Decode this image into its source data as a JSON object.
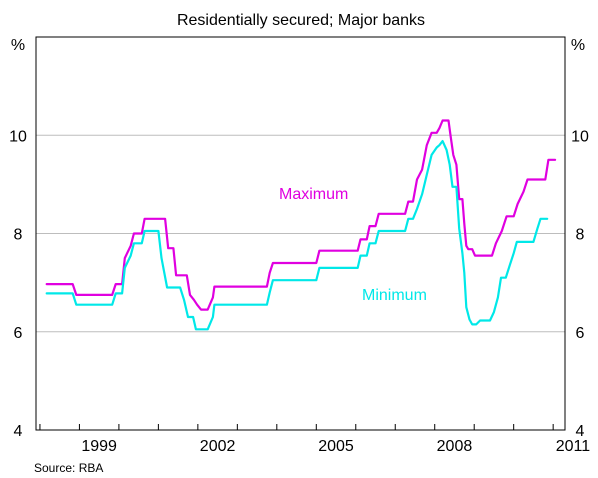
{
  "chart_data": {
    "type": "line",
    "title": "Residentially secured; Major banks",
    "left_unit": "%",
    "right_unit": "%",
    "ylim": [
      4,
      12
    ],
    "y_ticks": [
      4,
      6,
      8,
      10
    ],
    "y_tick_labels": [
      "4",
      "6",
      "8",
      "10"
    ],
    "x_tick_labels": [
      "1999",
      "2002",
      "2005",
      "2008",
      "2011"
    ],
    "x_tick_years": [
      1999,
      2002,
      2005,
      2008,
      2011
    ],
    "xlim": [
      1997.9,
      2011.3
    ],
    "grid": true,
    "source": "Source: RBA",
    "series": [
      {
        "name": "Maximum",
        "color": "#e000e0",
        "points": [
          [
            1998.17,
            6.97
          ],
          [
            1998.83,
            6.97
          ],
          [
            1998.92,
            6.75
          ],
          [
            1999.83,
            6.75
          ],
          [
            1999.92,
            6.97
          ],
          [
            2000.08,
            6.97
          ],
          [
            2000.15,
            7.5
          ],
          [
            2000.3,
            7.75
          ],
          [
            2000.38,
            8.0
          ],
          [
            2000.58,
            8.0
          ],
          [
            2000.65,
            8.3
          ],
          [
            2001.17,
            8.3
          ],
          [
            2001.25,
            7.7
          ],
          [
            2001.38,
            7.7
          ],
          [
            2001.45,
            7.15
          ],
          [
            2001.72,
            7.15
          ],
          [
            2001.8,
            6.75
          ],
          [
            2001.9,
            6.65
          ],
          [
            2001.98,
            6.55
          ],
          [
            2002.08,
            6.45
          ],
          [
            2002.25,
            6.45
          ],
          [
            2002.38,
            6.7
          ],
          [
            2002.42,
            6.92
          ],
          [
            2003.75,
            6.92
          ],
          [
            2003.82,
            7.2
          ],
          [
            2003.9,
            7.4
          ],
          [
            2005.0,
            7.4
          ],
          [
            2005.08,
            7.65
          ],
          [
            2006.05,
            7.65
          ],
          [
            2006.12,
            7.88
          ],
          [
            2006.28,
            7.88
          ],
          [
            2006.35,
            8.15
          ],
          [
            2006.5,
            8.15
          ],
          [
            2006.58,
            8.4
          ],
          [
            2007.25,
            8.4
          ],
          [
            2007.33,
            8.65
          ],
          [
            2007.45,
            8.65
          ],
          [
            2007.55,
            9.1
          ],
          [
            2007.68,
            9.3
          ],
          [
            2007.8,
            9.8
          ],
          [
            2007.92,
            10.05
          ],
          [
            2008.05,
            10.05
          ],
          [
            2008.12,
            10.15
          ],
          [
            2008.2,
            10.3
          ],
          [
            2008.35,
            10.3
          ],
          [
            2008.4,
            10.0
          ],
          [
            2008.47,
            9.6
          ],
          [
            2008.55,
            9.4
          ],
          [
            2008.62,
            8.7
          ],
          [
            2008.7,
            8.7
          ],
          [
            2008.75,
            8.2
          ],
          [
            2008.8,
            7.75
          ],
          [
            2008.85,
            7.68
          ],
          [
            2008.95,
            7.68
          ],
          [
            2009.02,
            7.55
          ],
          [
            2009.45,
            7.55
          ],
          [
            2009.55,
            7.8
          ],
          [
            2009.7,
            8.05
          ],
          [
            2009.82,
            8.35
          ],
          [
            2010.0,
            8.35
          ],
          [
            2010.1,
            8.6
          ],
          [
            2010.25,
            8.85
          ],
          [
            2010.35,
            9.1
          ],
          [
            2010.8,
            9.1
          ],
          [
            2010.88,
            9.5
          ],
          [
            2011.05,
            9.5
          ]
        ]
      },
      {
        "name": "Minimum",
        "color": "#00e8e8",
        "points": [
          [
            1998.17,
            6.78
          ],
          [
            1998.83,
            6.78
          ],
          [
            1998.92,
            6.55
          ],
          [
            1999.83,
            6.55
          ],
          [
            1999.92,
            6.78
          ],
          [
            2000.08,
            6.78
          ],
          [
            2000.15,
            7.3
          ],
          [
            2000.3,
            7.55
          ],
          [
            2000.38,
            7.8
          ],
          [
            2000.58,
            7.8
          ],
          [
            2000.65,
            8.05
          ],
          [
            2001.0,
            8.05
          ],
          [
            2001.08,
            7.5
          ],
          [
            2001.22,
            6.9
          ],
          [
            2001.55,
            6.9
          ],
          [
            2001.65,
            6.65
          ],
          [
            2001.75,
            6.3
          ],
          [
            2001.88,
            6.3
          ],
          [
            2001.95,
            6.05
          ],
          [
            2002.25,
            6.05
          ],
          [
            2002.38,
            6.3
          ],
          [
            2002.42,
            6.55
          ],
          [
            2003.75,
            6.55
          ],
          [
            2003.82,
            6.8
          ],
          [
            2003.9,
            7.05
          ],
          [
            2005.0,
            7.05
          ],
          [
            2005.08,
            7.3
          ],
          [
            2006.05,
            7.3
          ],
          [
            2006.12,
            7.55
          ],
          [
            2006.28,
            7.55
          ],
          [
            2006.35,
            7.8
          ],
          [
            2006.5,
            7.8
          ],
          [
            2006.58,
            8.05
          ],
          [
            2007.25,
            8.05
          ],
          [
            2007.33,
            8.3
          ],
          [
            2007.45,
            8.3
          ],
          [
            2007.55,
            8.5
          ],
          [
            2007.68,
            8.8
          ],
          [
            2007.8,
            9.2
          ],
          [
            2007.92,
            9.6
          ],
          [
            2008.05,
            9.75
          ],
          [
            2008.12,
            9.8
          ],
          [
            2008.2,
            9.88
          ],
          [
            2008.3,
            9.7
          ],
          [
            2008.38,
            9.4
          ],
          [
            2008.45,
            8.95
          ],
          [
            2008.55,
            8.95
          ],
          [
            2008.62,
            8.1
          ],
          [
            2008.7,
            7.6
          ],
          [
            2008.75,
            7.2
          ],
          [
            2008.8,
            6.5
          ],
          [
            2008.88,
            6.25
          ],
          [
            2008.95,
            6.15
          ],
          [
            2009.05,
            6.15
          ],
          [
            2009.15,
            6.23
          ],
          [
            2009.4,
            6.23
          ],
          [
            2009.5,
            6.4
          ],
          [
            2009.6,
            6.7
          ],
          [
            2009.68,
            7.1
          ],
          [
            2009.8,
            7.1
          ],
          [
            2009.9,
            7.35
          ],
          [
            2010.0,
            7.6
          ],
          [
            2010.08,
            7.83
          ],
          [
            2010.5,
            7.83
          ],
          [
            2010.6,
            8.1
          ],
          [
            2010.68,
            8.3
          ],
          [
            2010.85,
            8.3
          ]
        ]
      }
    ]
  }
}
